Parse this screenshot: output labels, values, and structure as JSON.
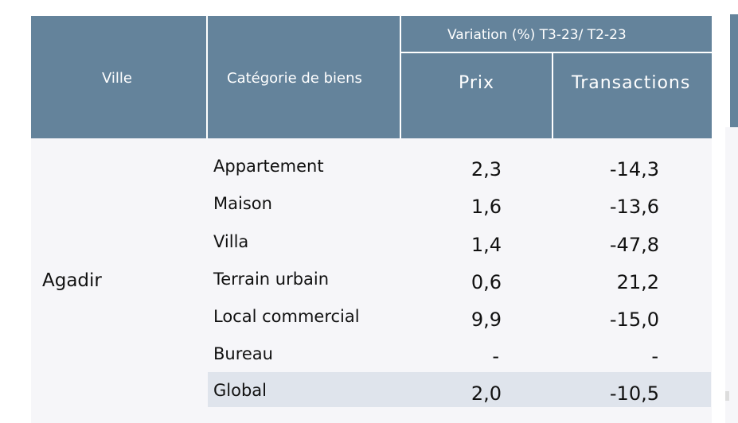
{
  "table": {
    "headers": {
      "city": "Ville",
      "category": "Catégorie de biens",
      "variation": "Variation (%) T3-23/ T2-23",
      "price": "Prix",
      "transactions": "Transactions"
    },
    "city": "Agadir",
    "rows": [
      {
        "category": "Appartement",
        "price": "2,3",
        "transactions": "-14,3"
      },
      {
        "category": "Maison",
        "price": "1,6",
        "transactions": "-13,6"
      },
      {
        "category": "Villa",
        "price": "1,4",
        "transactions": "-47,8"
      },
      {
        "category": "Terrain urbain",
        "price": "0,6",
        "transactions": "21,2"
      },
      {
        "category": "Local commercial",
        "price": "9,9",
        "transactions": "-15,0"
      },
      {
        "category": "Bureau",
        "price": "-",
        "transactions": "-"
      },
      {
        "category": "Global",
        "price": "2,0",
        "transactions": "-10,5"
      }
    ]
  },
  "colors": {
    "header_bg": "#64839b",
    "body_bg": "#f6f6f9",
    "global_row_bg": "#dfe4ec"
  }
}
